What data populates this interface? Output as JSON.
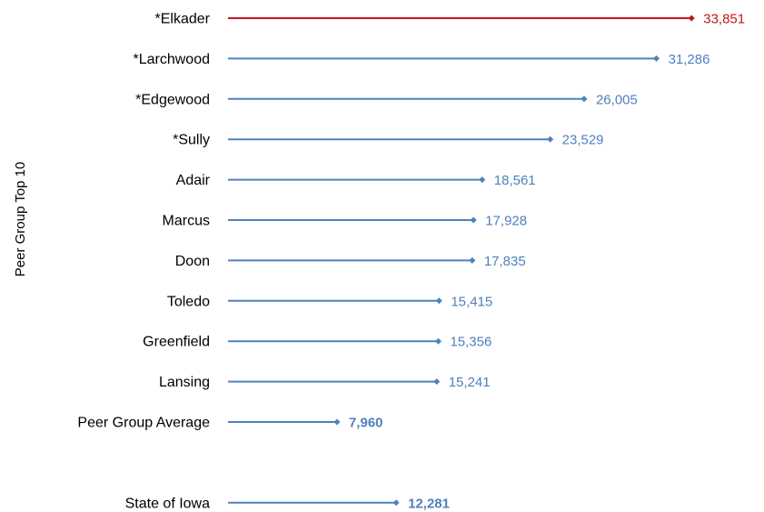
{
  "chart_data": {
    "type": "bar",
    "ylabel": "Peer Group Top 10",
    "colors": {
      "highlight": "#c0161b",
      "default": "#4f81bd"
    },
    "categories": [
      {
        "label": "*Elkader",
        "value": 33851,
        "display": "33,851",
        "highlight": true,
        "bold": false
      },
      {
        "label": "*Larchwood",
        "value": 31286,
        "display": "31,286",
        "highlight": false,
        "bold": false
      },
      {
        "label": "*Edgewood",
        "value": 26005,
        "display": "26,005",
        "highlight": false,
        "bold": false
      },
      {
        "label": "*Sully",
        "value": 23529,
        "display": "23,529",
        "highlight": false,
        "bold": false
      },
      {
        "label": "Adair",
        "value": 18561,
        "display": "18,561",
        "highlight": false,
        "bold": false
      },
      {
        "label": "Marcus",
        "value": 17928,
        "display": "17,928",
        "highlight": false,
        "bold": false
      },
      {
        "label": "Doon",
        "value": 17835,
        "display": "17,835",
        "highlight": false,
        "bold": false
      },
      {
        "label": "Toledo",
        "value": 15415,
        "display": "15,415",
        "highlight": false,
        "bold": false
      },
      {
        "label": "Greenfield",
        "value": 15356,
        "display": "15,356",
        "highlight": false,
        "bold": false
      },
      {
        "label": "Lansing",
        "value": 15241,
        "display": "15,241",
        "highlight": false,
        "bold": false
      },
      {
        "label": "Peer Group Average",
        "value": 7960,
        "display": "7,960",
        "highlight": false,
        "bold": true
      },
      {
        "label": "",
        "value": null,
        "display": "",
        "highlight": false,
        "bold": false
      },
      {
        "label": "State of Iowa",
        "value": 12281,
        "display": "12,281",
        "highlight": false,
        "bold": true
      }
    ]
  }
}
